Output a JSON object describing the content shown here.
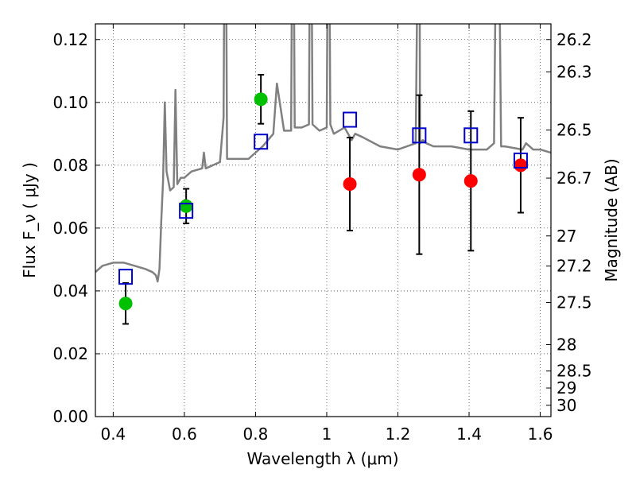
{
  "chart_data": {
    "type": "scatter",
    "title": "",
    "xlabel": "Wavelength  λ (μm)",
    "ylabel": "Flux  F_ν  ( μJy )",
    "y2label": "Magnitude (AB)",
    "xlim": [
      0.35,
      1.63
    ],
    "ylim": [
      0.0,
      0.125
    ],
    "grid": true,
    "xticks": [
      0.4,
      0.6,
      0.8,
      1.0,
      1.2,
      1.4,
      1.6
    ],
    "xtick_labels": [
      "0.4",
      "0.6",
      "0.8",
      "1",
      "1.2",
      "1.4",
      "1.6"
    ],
    "yticks": [
      0.0,
      0.02,
      0.04,
      0.06,
      0.08,
      0.1,
      0.12
    ],
    "ytick_labels": [
      "0.00",
      "0.02",
      "0.04",
      "0.06",
      "0.08",
      "0.10",
      "0.12"
    ],
    "y2_ticks": [
      {
        "label": "26.2",
        "flux": 0.12
      },
      {
        "label": "26.3",
        "flux": 0.1097
      },
      {
        "label": "26.5",
        "flux": 0.0912
      },
      {
        "label": "26.7",
        "flux": 0.0759
      },
      {
        "label": "27",
        "flux": 0.0575
      },
      {
        "label": "27.2",
        "flux": 0.0479
      },
      {
        "label": "27.5",
        "flux": 0.0363
      },
      {
        "label": "28",
        "flux": 0.0229
      },
      {
        "label": "28.5",
        "flux": 0.0145
      },
      {
        "label": "29",
        "flux": 0.0091
      },
      {
        "label": "30",
        "flux": 0.0036
      }
    ],
    "series": [
      {
        "kind": "line",
        "color": "#808080",
        "x": [
          0.35,
          0.37,
          0.4,
          0.43,
          0.46,
          0.49,
          0.51,
          0.52,
          0.525,
          0.53,
          0.535,
          0.54,
          0.545,
          0.55,
          0.56,
          0.57,
          0.575,
          0.58,
          0.59,
          0.6,
          0.62,
          0.65,
          0.655,
          0.66,
          0.68,
          0.7,
          0.71,
          0.715,
          0.72,
          0.73,
          0.75,
          0.78,
          0.8,
          0.82,
          0.85,
          0.86,
          0.88,
          0.9,
          0.905,
          0.91,
          0.93,
          0.95,
          0.955,
          0.96,
          0.97,
          0.98,
          1.0,
          1.005,
          1.01,
          1.02,
          1.05,
          1.07,
          1.08,
          1.1,
          1.15,
          1.2,
          1.25,
          1.26,
          1.262,
          1.27,
          1.28,
          1.3,
          1.35,
          1.4,
          1.45,
          1.47,
          1.48,
          1.49,
          1.5,
          1.55,
          1.56,
          1.58,
          1.6,
          1.63
        ],
        "y": [
          0.046,
          0.048,
          0.049,
          0.049,
          0.048,
          0.047,
          0.046,
          0.045,
          0.043,
          0.047,
          0.062,
          0.075,
          0.1,
          0.078,
          0.072,
          0.073,
          0.104,
          0.074,
          0.076,
          0.076,
          0.078,
          0.079,
          0.084,
          0.079,
          0.08,
          0.081,
          0.095,
          0.2,
          0.082,
          0.082,
          0.082,
          0.082,
          0.084,
          0.086,
          0.09,
          0.106,
          0.091,
          0.091,
          0.2,
          0.092,
          0.092,
          0.093,
          0.2,
          0.093,
          0.092,
          0.091,
          0.092,
          0.2,
          0.093,
          0.09,
          0.092,
          0.088,
          0.09,
          0.089,
          0.086,
          0.085,
          0.087,
          0.2,
          0.087,
          0.088,
          0.087,
          0.086,
          0.086,
          0.085,
          0.085,
          0.087,
          0.2,
          0.086,
          0.086,
          0.085,
          0.087,
          0.085,
          0.085,
          0.084
        ]
      },
      {
        "kind": "points",
        "marker": "circle",
        "color": "#00c000",
        "x": [
          0.435,
          0.605,
          0.815
        ],
        "y": [
          0.036,
          0.067,
          0.101
        ],
        "yerr": [
          0.0065,
          0.0055,
          0.0078
        ]
      },
      {
        "kind": "points",
        "marker": "circle",
        "color": "#ff0000",
        "x": [
          1.065,
          1.26,
          1.405,
          1.545
        ],
        "y": [
          0.074,
          0.077,
          0.075,
          0.08
        ],
        "yerr": [
          0.0148,
          0.0253,
          0.0222,
          0.0151
        ]
      },
      {
        "kind": "points",
        "marker": "square",
        "color": "#0000cc",
        "x": [
          0.435,
          0.605,
          0.815,
          1.065,
          1.26,
          1.405,
          1.545
        ],
        "y": [
          0.0445,
          0.0655,
          0.0875,
          0.0945,
          0.0895,
          0.0895,
          0.0815
        ]
      }
    ]
  }
}
